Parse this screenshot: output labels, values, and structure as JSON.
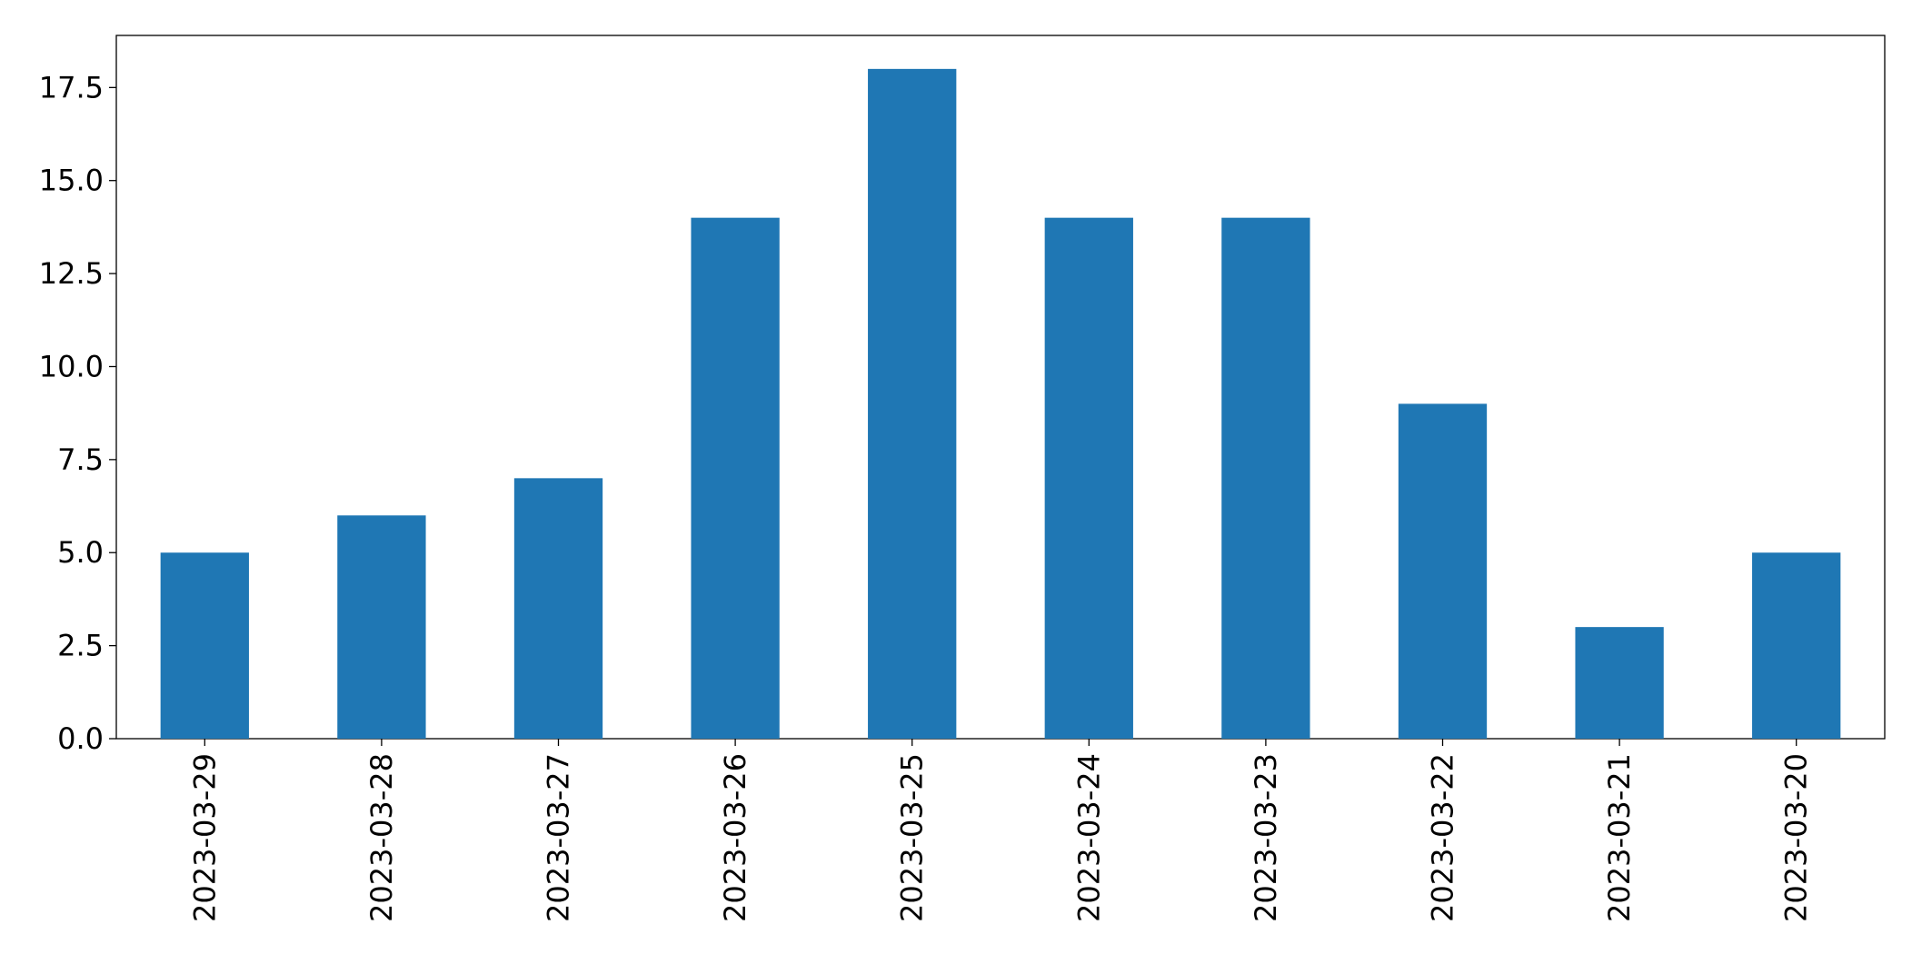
{
  "chart_data": {
    "type": "bar",
    "categories": [
      "2023-03-29",
      "2023-03-28",
      "2023-03-27",
      "2023-03-26",
      "2023-03-25",
      "2023-03-24",
      "2023-03-23",
      "2023-03-22",
      "2023-03-21",
      "2023-03-20"
    ],
    "values": [
      5,
      6,
      7,
      14,
      18,
      14,
      14,
      9,
      3,
      5
    ],
    "color": "#1f77b4",
    "ylim": [
      0,
      18.9
    ],
    "yticks": [
      {
        "value": 0,
        "label": "0.0"
      },
      2.5,
      {
        "value": 5,
        "label": "5.0"
      },
      7.5,
      {
        "value": 10,
        "label": "10.0"
      },
      12.5,
      {
        "value": 15,
        "label": "15.0"
      },
      17.5
    ],
    "grid": false
  }
}
